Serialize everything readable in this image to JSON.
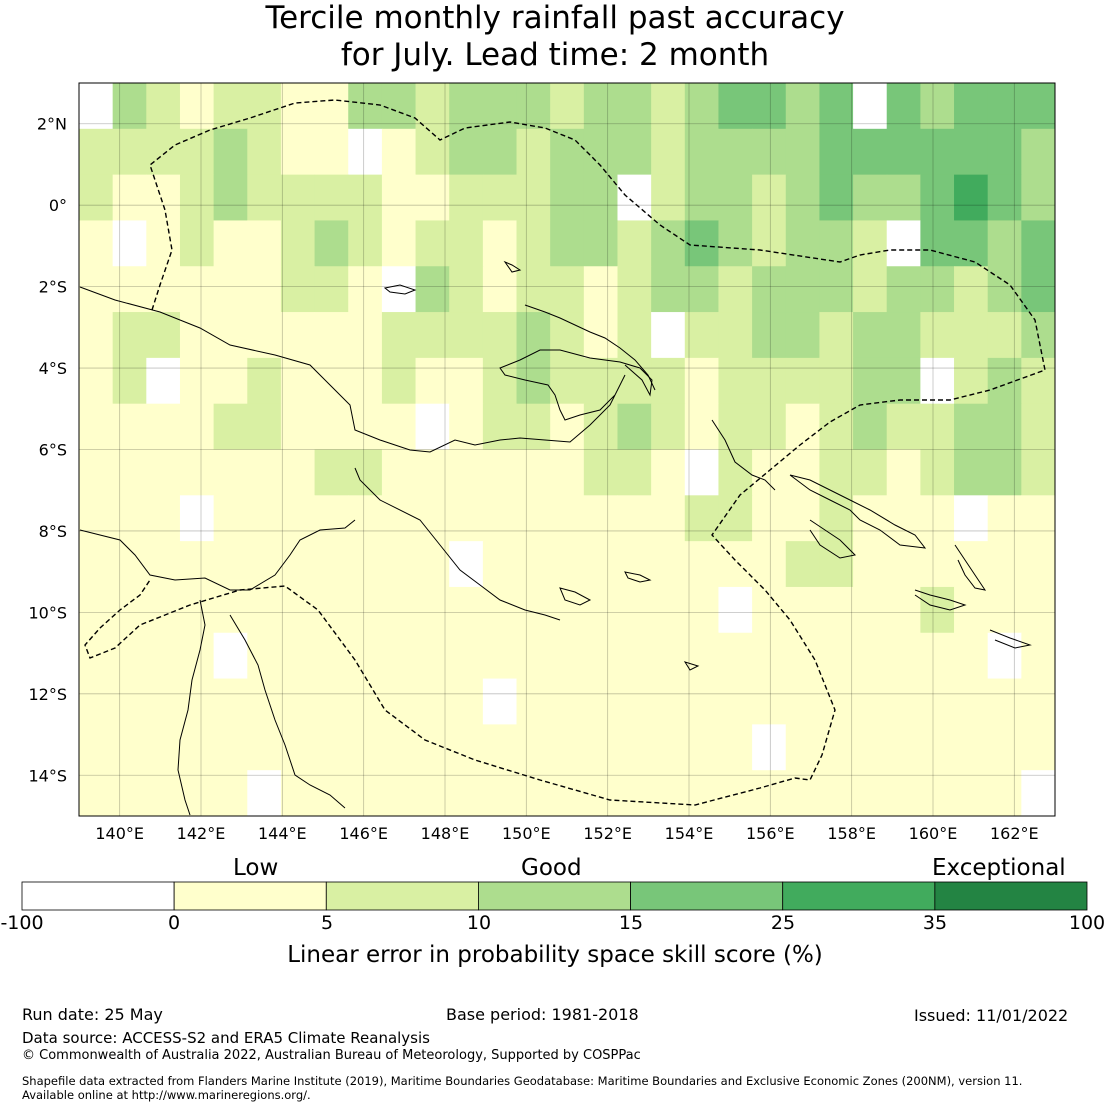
{
  "title": {
    "line1": "Tercile monthly rainfall past accuracy",
    "line2": "for July. Lead time: 2 month"
  },
  "map": {
    "lon_labels": [
      "140°E",
      "142°E",
      "144°E",
      "146°E",
      "148°E",
      "150°E",
      "152°E",
      "154°E",
      "156°E",
      "158°E",
      "160°E",
      "162°E"
    ],
    "lat_labels": [
      "2°N",
      "0°",
      "2°S",
      "4°S",
      "6°S",
      "8°S",
      "10°S",
      "12°S",
      "14°S"
    ],
    "extent": {
      "lon": [
        139,
        163
      ],
      "lat": [
        -15,
        3
      ]
    }
  },
  "colorbar": {
    "words": {
      "low": "Low",
      "good": "Good",
      "exceptional": "Exceptional"
    },
    "ticks": [
      "-100",
      "0",
      "5",
      "10",
      "15",
      "25",
      "35",
      "100"
    ],
    "colors": [
      "#ffffff",
      "#ffffcc",
      "#d9f0a3",
      "#addd8e",
      "#78c679",
      "#41ab5d",
      "#238443"
    ],
    "label": "Linear error in probability space skill score (%)"
  },
  "footer": {
    "run_date": "Run date: 25 May",
    "base_period": "Base period: 1981-2018",
    "issued": "Issued: 11/01/2022",
    "data_source": "Data source: ACCESS-S2 and ERA5 Climate Reanalysis",
    "copyright": "© Commonwealth of Australia 2022, Australian Bureau of Meteorology, Supported by COSPPac",
    "shapefile_line1": "Shapefile data extracted from Flanders Marine Institute (2019), Maritime Boundaries Geodatabase: Maritime Boundaries and Exclusive Economic Zones (200NM), version 11.",
    "shapefile_line2": "Available online at http://www.marineregions.org/."
  }
}
